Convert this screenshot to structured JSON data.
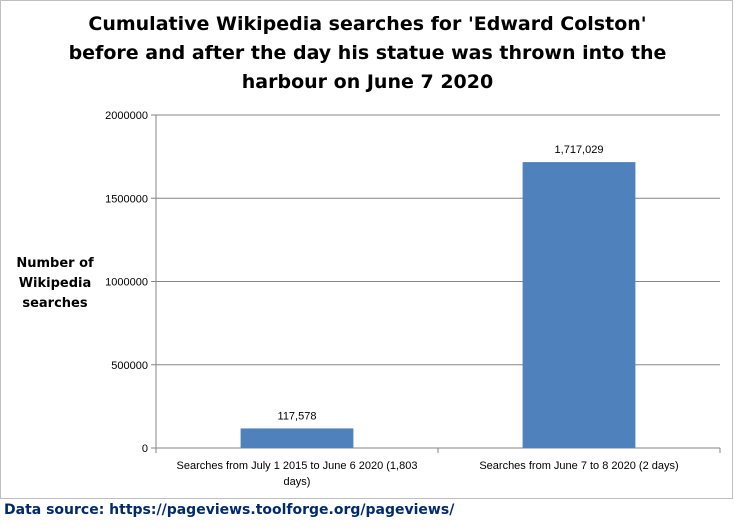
{
  "chart_data": {
    "type": "bar",
    "title_lines": [
      "Cumulative Wikipedia searches for 'Edward Colston'",
      "before and after the day his statue was thrown into the",
      "harbour on June 7 2020"
    ],
    "ylabel_lines": [
      "Number of",
      "Wikipedia",
      "searches"
    ],
    "xlabel": "",
    "categories": [
      [
        "Searches from July 1 2015 to June 6 2020 (1,803",
        "days)"
      ],
      [
        "Searches from June 7 to 8 2020 (2 days)"
      ]
    ],
    "values": [
      117578,
      1717029
    ],
    "data_labels": [
      "117,578",
      "1,717,029"
    ],
    "ylim": [
      0,
      2000000
    ],
    "yticks": [
      0,
      500000,
      1000000,
      1500000,
      2000000
    ],
    "ytick_labels": [
      "0",
      "500000",
      "1000000",
      "1500000",
      "2000000"
    ],
    "grid": true,
    "legend": "none",
    "bar_color": "#4f81bd",
    "grid_color": "#868686"
  },
  "footer": "Data source: https://pageviews.toolforge.org/pageviews/"
}
